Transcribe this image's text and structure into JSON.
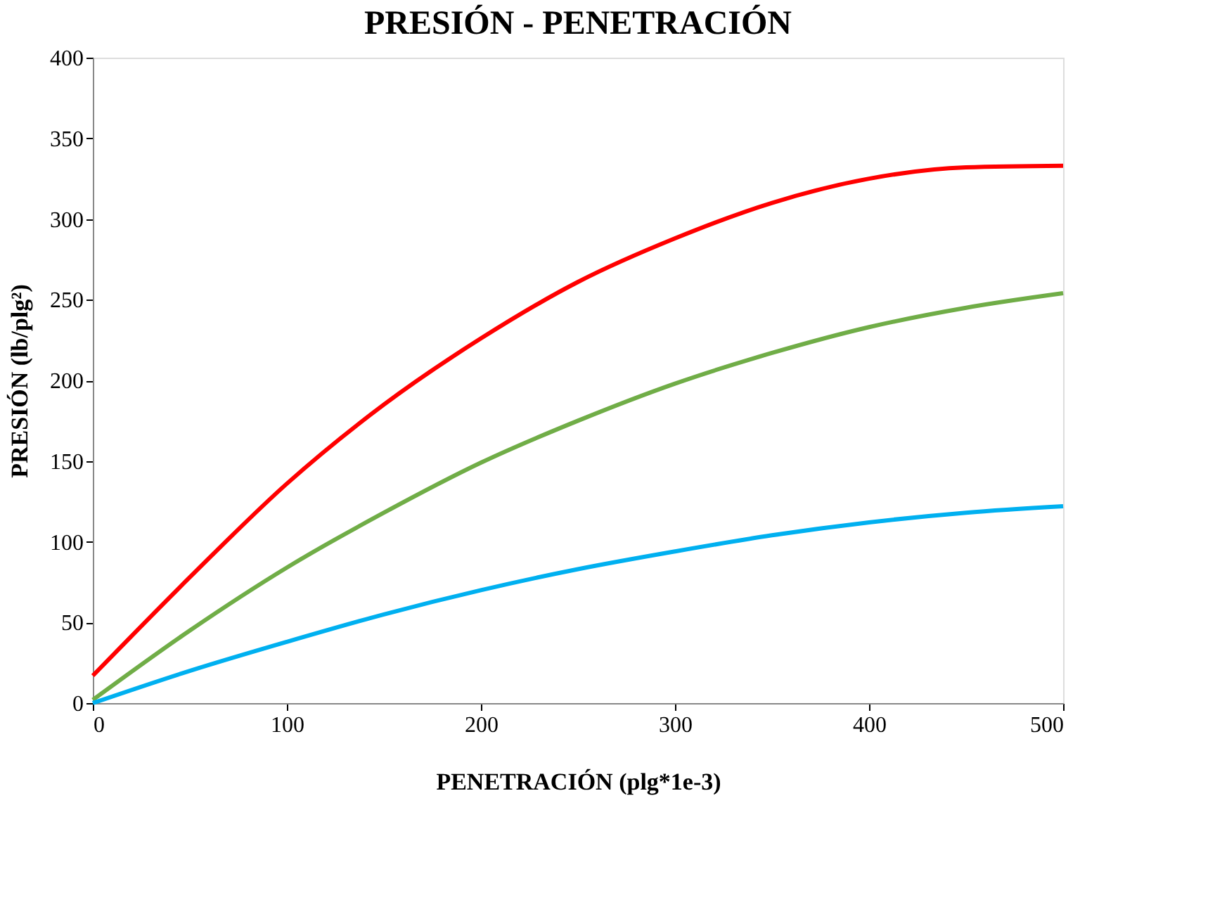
{
  "chart_data": {
    "type": "line",
    "title": "PRESIÓN - PENETRACIÓN",
    "xlabel": "PENETRACIÓN (plg*1e-3)",
    "ylabel": "PRESIÓN (lb/plg²)",
    "x": [
      0,
      50,
      100,
      150,
      200,
      250,
      300,
      350,
      400,
      450,
      500
    ],
    "series": [
      {
        "color": "#ff0000",
        "values": [
          17,
          78,
          136,
          185,
          226,
          261,
          288,
          310,
          325,
          332,
          333
        ]
      },
      {
        "color": "#70ad47",
        "values": [
          2,
          45,
          84,
          118,
          149,
          175,
          198,
          217,
          233,
          245,
          254
        ]
      },
      {
        "color": "#00b0f0",
        "values": [
          0,
          20,
          38,
          55,
          70,
          83,
          94,
          104,
          112,
          118,
          122
        ]
      }
    ],
    "xlim": [
      0,
      500
    ],
    "xticks": [
      0,
      100,
      200,
      300,
      400,
      500
    ],
    "ylim": [
      0,
      400
    ],
    "yticks": [
      0,
      50,
      100,
      150,
      200,
      250,
      300,
      350,
      400
    ],
    "grid": false,
    "legend": false,
    "marker": "none",
    "line_style": "solid"
  }
}
